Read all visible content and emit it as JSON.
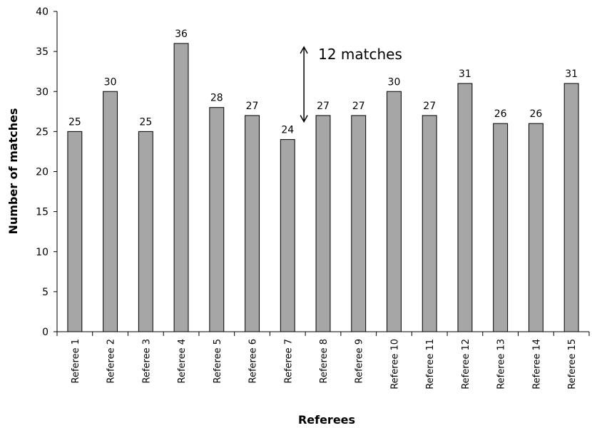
{
  "chart_data": {
    "type": "bar",
    "categories": [
      "Referee 1",
      "Referee 2",
      "Referee 3",
      "Referee 4",
      "Referee 5",
      "Referee 6",
      "Referee 7",
      "Referee 8",
      "Referee 9",
      "Referee 10",
      "Referee 11",
      "Referee 12",
      "Referee 13",
      "Referee 14",
      "Referee 15"
    ],
    "values": [
      25,
      30,
      25,
      36,
      28,
      27,
      24,
      27,
      27,
      30,
      27,
      31,
      26,
      26,
      31
    ],
    "xlabel": "Referees",
    "ylabel": "Number of matches",
    "ylim": [
      0,
      40
    ],
    "yticks": [
      0,
      5,
      10,
      15,
      20,
      25,
      30,
      35,
      40
    ],
    "grid": false,
    "bar_color": "#a6a6a6",
    "annotation": {
      "text": "12 matches",
      "from_value": 36,
      "to_value": 24,
      "between": [
        "Referee 7",
        "Referee 8"
      ]
    }
  }
}
